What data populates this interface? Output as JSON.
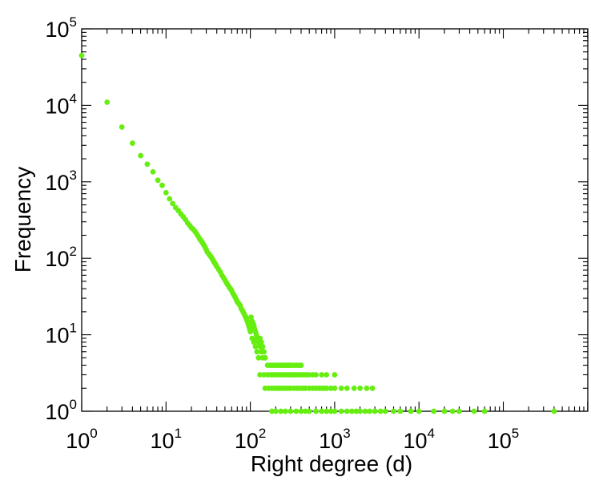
{
  "chart_data": {
    "type": "scatter",
    "title": "",
    "xlabel": "Right degree (d)",
    "ylabel": "Frequency",
    "x_scale": "log",
    "y_scale": "log",
    "xlim": [
      1,
      1000000
    ],
    "ylim": [
      1,
      100000
    ],
    "x_ticks": [
      {
        "value": 1,
        "base": "10",
        "exp": "0"
      },
      {
        "value": 10,
        "base": "10",
        "exp": "1"
      },
      {
        "value": 100,
        "base": "10",
        "exp": "2"
      },
      {
        "value": 1000,
        "base": "10",
        "exp": "3"
      },
      {
        "value": 10000,
        "base": "10",
        "exp": "4"
      },
      {
        "value": 100000,
        "base": "10",
        "exp": "5"
      }
    ],
    "y_ticks": [
      {
        "value": 1,
        "base": "10",
        "exp": "0"
      },
      {
        "value": 10,
        "base": "10",
        "exp": "1"
      },
      {
        "value": 100,
        "base": "10",
        "exp": "2"
      },
      {
        "value": 1000,
        "base": "10",
        "exp": "3"
      },
      {
        "value": 10000,
        "base": "10",
        "exp": "4"
      },
      {
        "value": 100000,
        "base": "10",
        "exp": "5"
      }
    ],
    "grid": false,
    "marker_color": "#66ee11",
    "series": [
      {
        "points": [
          [
            1,
            45000
          ],
          [
            2,
            11000
          ],
          [
            3,
            5200
          ],
          [
            4,
            3200
          ],
          [
            5,
            2200
          ],
          [
            6,
            1700
          ],
          [
            7,
            1350
          ],
          [
            8,
            1050
          ],
          [
            9,
            900
          ],
          [
            10,
            720
          ],
          [
            11,
            600
          ],
          [
            12,
            520
          ],
          [
            13,
            460
          ],
          [
            14,
            420
          ],
          [
            15,
            380
          ],
          [
            16,
            350
          ],
          [
            17,
            320
          ],
          [
            18,
            290
          ],
          [
            19,
            270
          ],
          [
            20,
            250
          ],
          [
            21,
            240
          ],
          [
            22,
            225
          ],
          [
            23,
            210
          ],
          [
            24,
            195
          ],
          [
            25,
            180
          ],
          [
            26,
            170
          ],
          [
            27,
            160
          ],
          [
            28,
            150
          ],
          [
            29,
            140
          ],
          [
            30,
            130
          ],
          [
            31,
            120
          ],
          [
            32,
            115
          ],
          [
            33,
            110
          ],
          [
            34,
            105
          ],
          [
            35,
            100
          ],
          [
            36,
            95
          ],
          [
            37,
            90
          ],
          [
            38,
            86
          ],
          [
            39,
            82
          ],
          [
            40,
            78
          ],
          [
            42,
            72
          ],
          [
            44,
            66
          ],
          [
            46,
            60
          ],
          [
            48,
            56
          ],
          [
            50,
            52
          ],
          [
            52,
            48
          ],
          [
            54,
            45
          ],
          [
            56,
            42
          ],
          [
            58,
            40
          ],
          [
            60,
            38
          ],
          [
            62,
            35
          ],
          [
            64,
            33
          ],
          [
            66,
            31
          ],
          [
            68,
            29
          ],
          [
            70,
            27
          ],
          [
            72,
            26
          ],
          [
            74,
            25
          ],
          [
            76,
            24
          ],
          [
            78,
            22
          ],
          [
            80,
            21
          ],
          [
            82,
            20
          ],
          [
            84,
            19
          ],
          [
            86,
            18
          ],
          [
            88,
            17
          ],
          [
            90,
            16
          ],
          [
            92,
            15
          ],
          [
            94,
            14
          ],
          [
            96,
            13
          ],
          [
            98,
            12
          ],
          [
            100,
            11
          ],
          [
            102,
            17
          ],
          [
            105,
            15
          ],
          [
            108,
            14
          ],
          [
            110,
            13
          ],
          [
            112,
            12
          ],
          [
            115,
            11
          ],
          [
            118,
            10
          ],
          [
            120,
            9
          ],
          [
            125,
            8
          ],
          [
            130,
            7
          ],
          [
            135,
            6
          ],
          [
            140,
            5
          ],
          [
            105,
            9
          ],
          [
            110,
            8
          ],
          [
            115,
            7
          ],
          [
            120,
            6
          ],
          [
            125,
            5
          ],
          [
            130,
            9
          ],
          [
            135,
            8
          ],
          [
            140,
            7
          ],
          [
            145,
            6
          ],
          [
            150,
            5
          ],
          [
            160,
            4
          ],
          [
            170,
            4
          ],
          [
            180,
            4
          ],
          [
            190,
            4
          ],
          [
            200,
            4
          ],
          [
            210,
            4
          ],
          [
            220,
            4
          ],
          [
            230,
            4
          ],
          [
            240,
            4
          ],
          [
            250,
            4
          ],
          [
            260,
            4
          ],
          [
            270,
            4
          ],
          [
            280,
            4
          ],
          [
            290,
            4
          ],
          [
            300,
            4
          ],
          [
            320,
            4
          ],
          [
            340,
            4
          ],
          [
            360,
            4
          ],
          [
            380,
            4
          ],
          [
            400,
            4
          ],
          [
            130,
            3
          ],
          [
            145,
            3
          ],
          [
            160,
            3
          ],
          [
            175,
            3
          ],
          [
            190,
            3
          ],
          [
            205,
            3
          ],
          [
            220,
            3
          ],
          [
            235,
            3
          ],
          [
            250,
            3
          ],
          [
            270,
            3
          ],
          [
            290,
            3
          ],
          [
            310,
            3
          ],
          [
            330,
            3
          ],
          [
            350,
            3
          ],
          [
            370,
            3
          ],
          [
            400,
            3
          ],
          [
            430,
            3
          ],
          [
            460,
            3
          ],
          [
            500,
            3
          ],
          [
            550,
            3
          ],
          [
            600,
            3
          ],
          [
            700,
            3
          ],
          [
            800,
            3
          ],
          [
            1000,
            3
          ],
          [
            150,
            2
          ],
          [
            165,
            2
          ],
          [
            180,
            2
          ],
          [
            195,
            2
          ],
          [
            210,
            2
          ],
          [
            225,
            2
          ],
          [
            240,
            2
          ],
          [
            260,
            2
          ],
          [
            280,
            2
          ],
          [
            300,
            2
          ],
          [
            330,
            2
          ],
          [
            360,
            2
          ],
          [
            390,
            2
          ],
          [
            420,
            2
          ],
          [
            450,
            2
          ],
          [
            500,
            2
          ],
          [
            550,
            2
          ],
          [
            600,
            2
          ],
          [
            650,
            2
          ],
          [
            700,
            2
          ],
          [
            750,
            2
          ],
          [
            800,
            2
          ],
          [
            900,
            2
          ],
          [
            1000,
            2
          ],
          [
            1200,
            2
          ],
          [
            1400,
            2
          ],
          [
            1700,
            2
          ],
          [
            2000,
            2
          ],
          [
            2400,
            2
          ],
          [
            2800,
            2
          ],
          [
            180,
            1
          ],
          [
            200,
            1
          ],
          [
            230,
            1
          ],
          [
            260,
            1
          ],
          [
            300,
            1
          ],
          [
            350,
            1
          ],
          [
            400,
            1
          ],
          [
            450,
            1
          ],
          [
            500,
            1
          ],
          [
            600,
            1
          ],
          [
            700,
            1
          ],
          [
            800,
            1
          ],
          [
            900,
            1
          ],
          [
            1000,
            1
          ],
          [
            1200,
            1
          ],
          [
            1400,
            1
          ],
          [
            1600,
            1
          ],
          [
            1800,
            1
          ],
          [
            2000,
            1
          ],
          [
            2300,
            1
          ],
          [
            2600,
            1
          ],
          [
            3000,
            1
          ],
          [
            3500,
            1
          ],
          [
            4000,
            1
          ],
          [
            5000,
            1
          ],
          [
            6000,
            1
          ],
          [
            8000,
            1
          ],
          [
            10000,
            1
          ],
          [
            15000,
            1
          ],
          [
            20000,
            1
          ],
          [
            25000,
            1
          ],
          [
            30000,
            1
          ],
          [
            45000,
            1
          ],
          [
            60000,
            1
          ],
          [
            400000,
            1
          ]
        ]
      }
    ]
  }
}
